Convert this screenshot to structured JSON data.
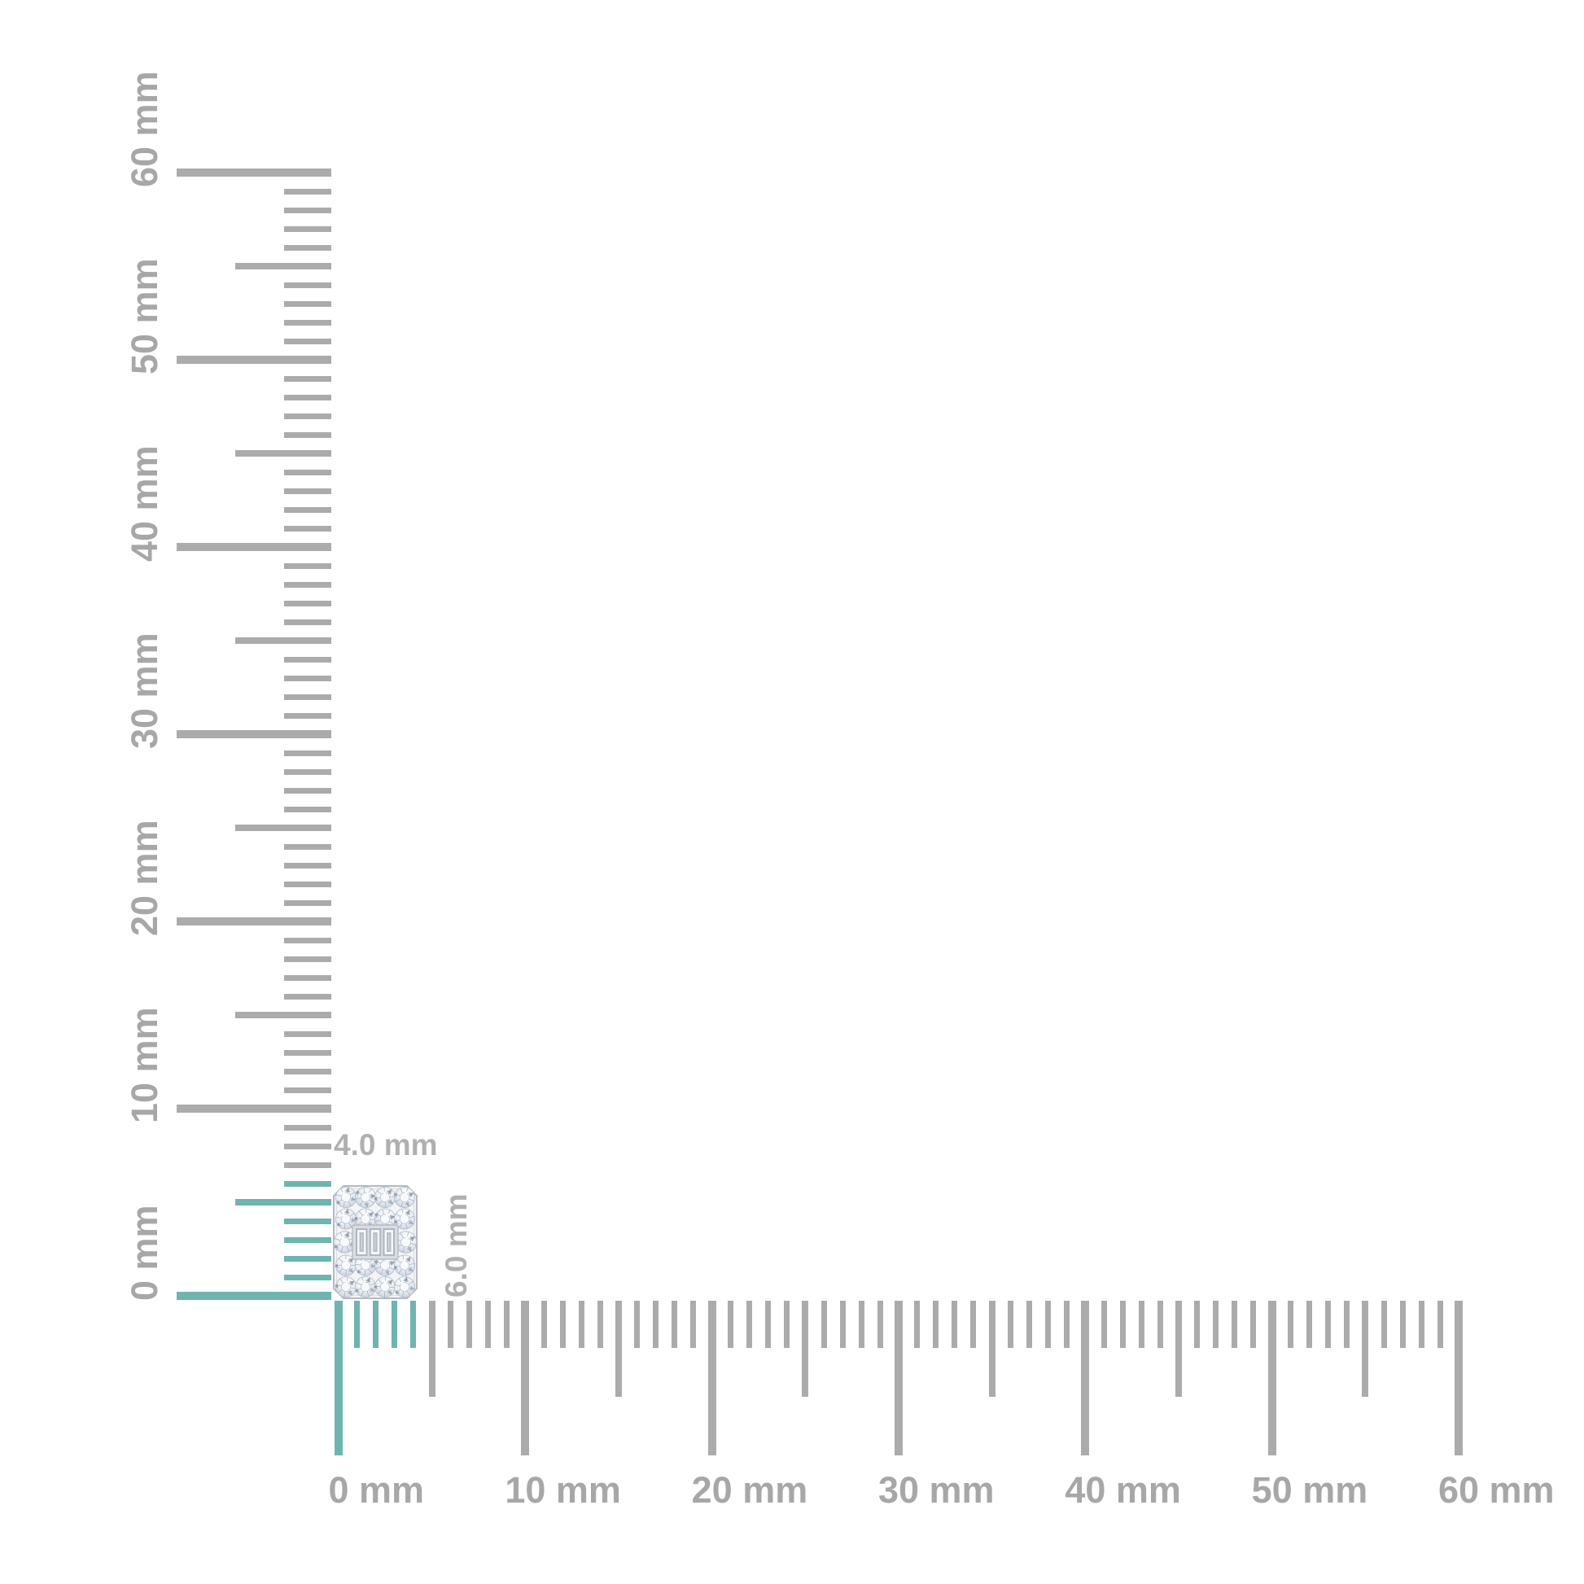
{
  "rulers": {
    "unit": "mm",
    "colors": {
      "tick": "#ababab",
      "highlight": "#6fb4af",
      "label": "#a7a7a7",
      "dimension_label": "#b0b0b0"
    },
    "vertical": {
      "min_mm": 0,
      "max_mm": 60,
      "tick_every_mm": 1,
      "medium_every_mm": 5,
      "major_every_mm": 10,
      "labels": [
        "0 mm",
        "10 mm",
        "20 mm",
        "30 mm",
        "40 mm",
        "50 mm",
        "60 mm"
      ],
      "highlighted_span_mm": [
        0,
        6
      ]
    },
    "horizontal": {
      "min_mm": 0,
      "max_mm": 60,
      "tick_every_mm": 1,
      "medium_every_mm": 5,
      "major_every_mm": 10,
      "labels": [
        "0 mm",
        "10 mm",
        "20 mm",
        "30 mm",
        "40 mm",
        "50 mm",
        "60 mm"
      ],
      "highlighted_span_mm": [
        0,
        4
      ]
    }
  },
  "dimensions": {
    "width_label": "4.0 mm",
    "height_label": "6.0 mm"
  },
  "item": {
    "kind": "diamond-cluster-emerald-outline",
    "width_mm": 4.0,
    "height_mm": 6.0,
    "round_stone_grid": {
      "cols": 4,
      "rows": 5
    },
    "round_stones": 18,
    "baguette_stones": 3,
    "frame_color": "#b5bac2",
    "stone_edge_color": "#c5cfdd",
    "stone_facet_color": "#97a3b4"
  }
}
